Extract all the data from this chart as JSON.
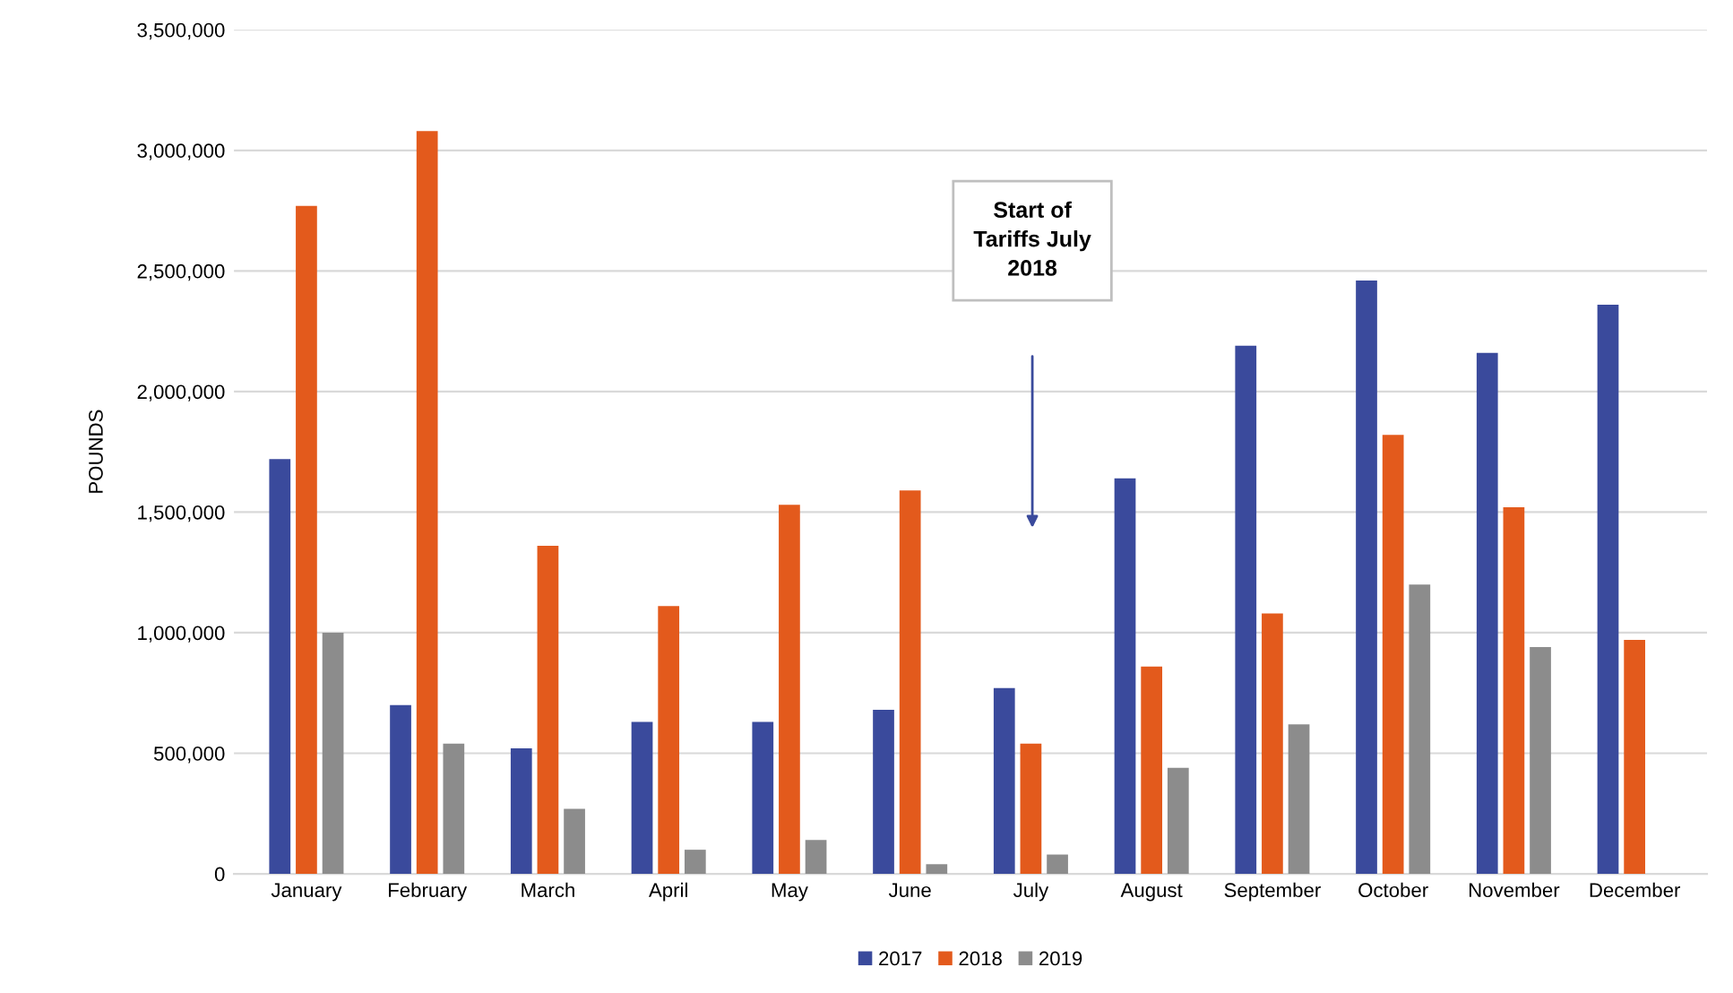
{
  "chart_data": {
    "type": "bar",
    "ylabel": "POUNDS",
    "categories": [
      "January",
      "February",
      "March",
      "April",
      "May",
      "June",
      "July",
      "August",
      "September",
      "October",
      "November",
      "December"
    ],
    "series": [
      {
        "name": "2017",
        "color": "#3a4a9c",
        "values": [
          1720000,
          700000,
          520000,
          630000,
          630000,
          680000,
          770000,
          1640000,
          2190000,
          2460000,
          2160000,
          2360000
        ]
      },
      {
        "name": "2018",
        "color": "#e35a1c",
        "values": [
          2770000,
          3080000,
          1360000,
          1110000,
          1530000,
          1590000,
          540000,
          860000,
          1080000,
          1820000,
          1520000,
          970000
        ]
      },
      {
        "name": "2019",
        "color": "#8c8c8c",
        "values": [
          1000000,
          540000,
          270000,
          100000,
          140000,
          40000,
          80000,
          440000,
          620000,
          1200000,
          940000,
          null
        ]
      }
    ],
    "annotations": [
      "Start of\nTariffs July\n2018"
    ],
    "ylim": [
      0,
      3500000
    ],
    "yticks": [
      0,
      {
        "value": 500000,
        "label": "500,000"
      },
      {
        "value": 1000000,
        "label": "1,000,000"
      },
      {
        "value": 1500000,
        "label": "1,500,000"
      },
      {
        "value": 2000000,
        "label": "2,000,000"
      },
      {
        "value": 2500000,
        "label": "2,500,000"
      },
      {
        "value": 3000000,
        "label": "3,000,000"
      },
      {
        "value": 3500000,
        "label": "3,500,000"
      }
    ],
    "grid": "y",
    "legend": "bottom"
  }
}
